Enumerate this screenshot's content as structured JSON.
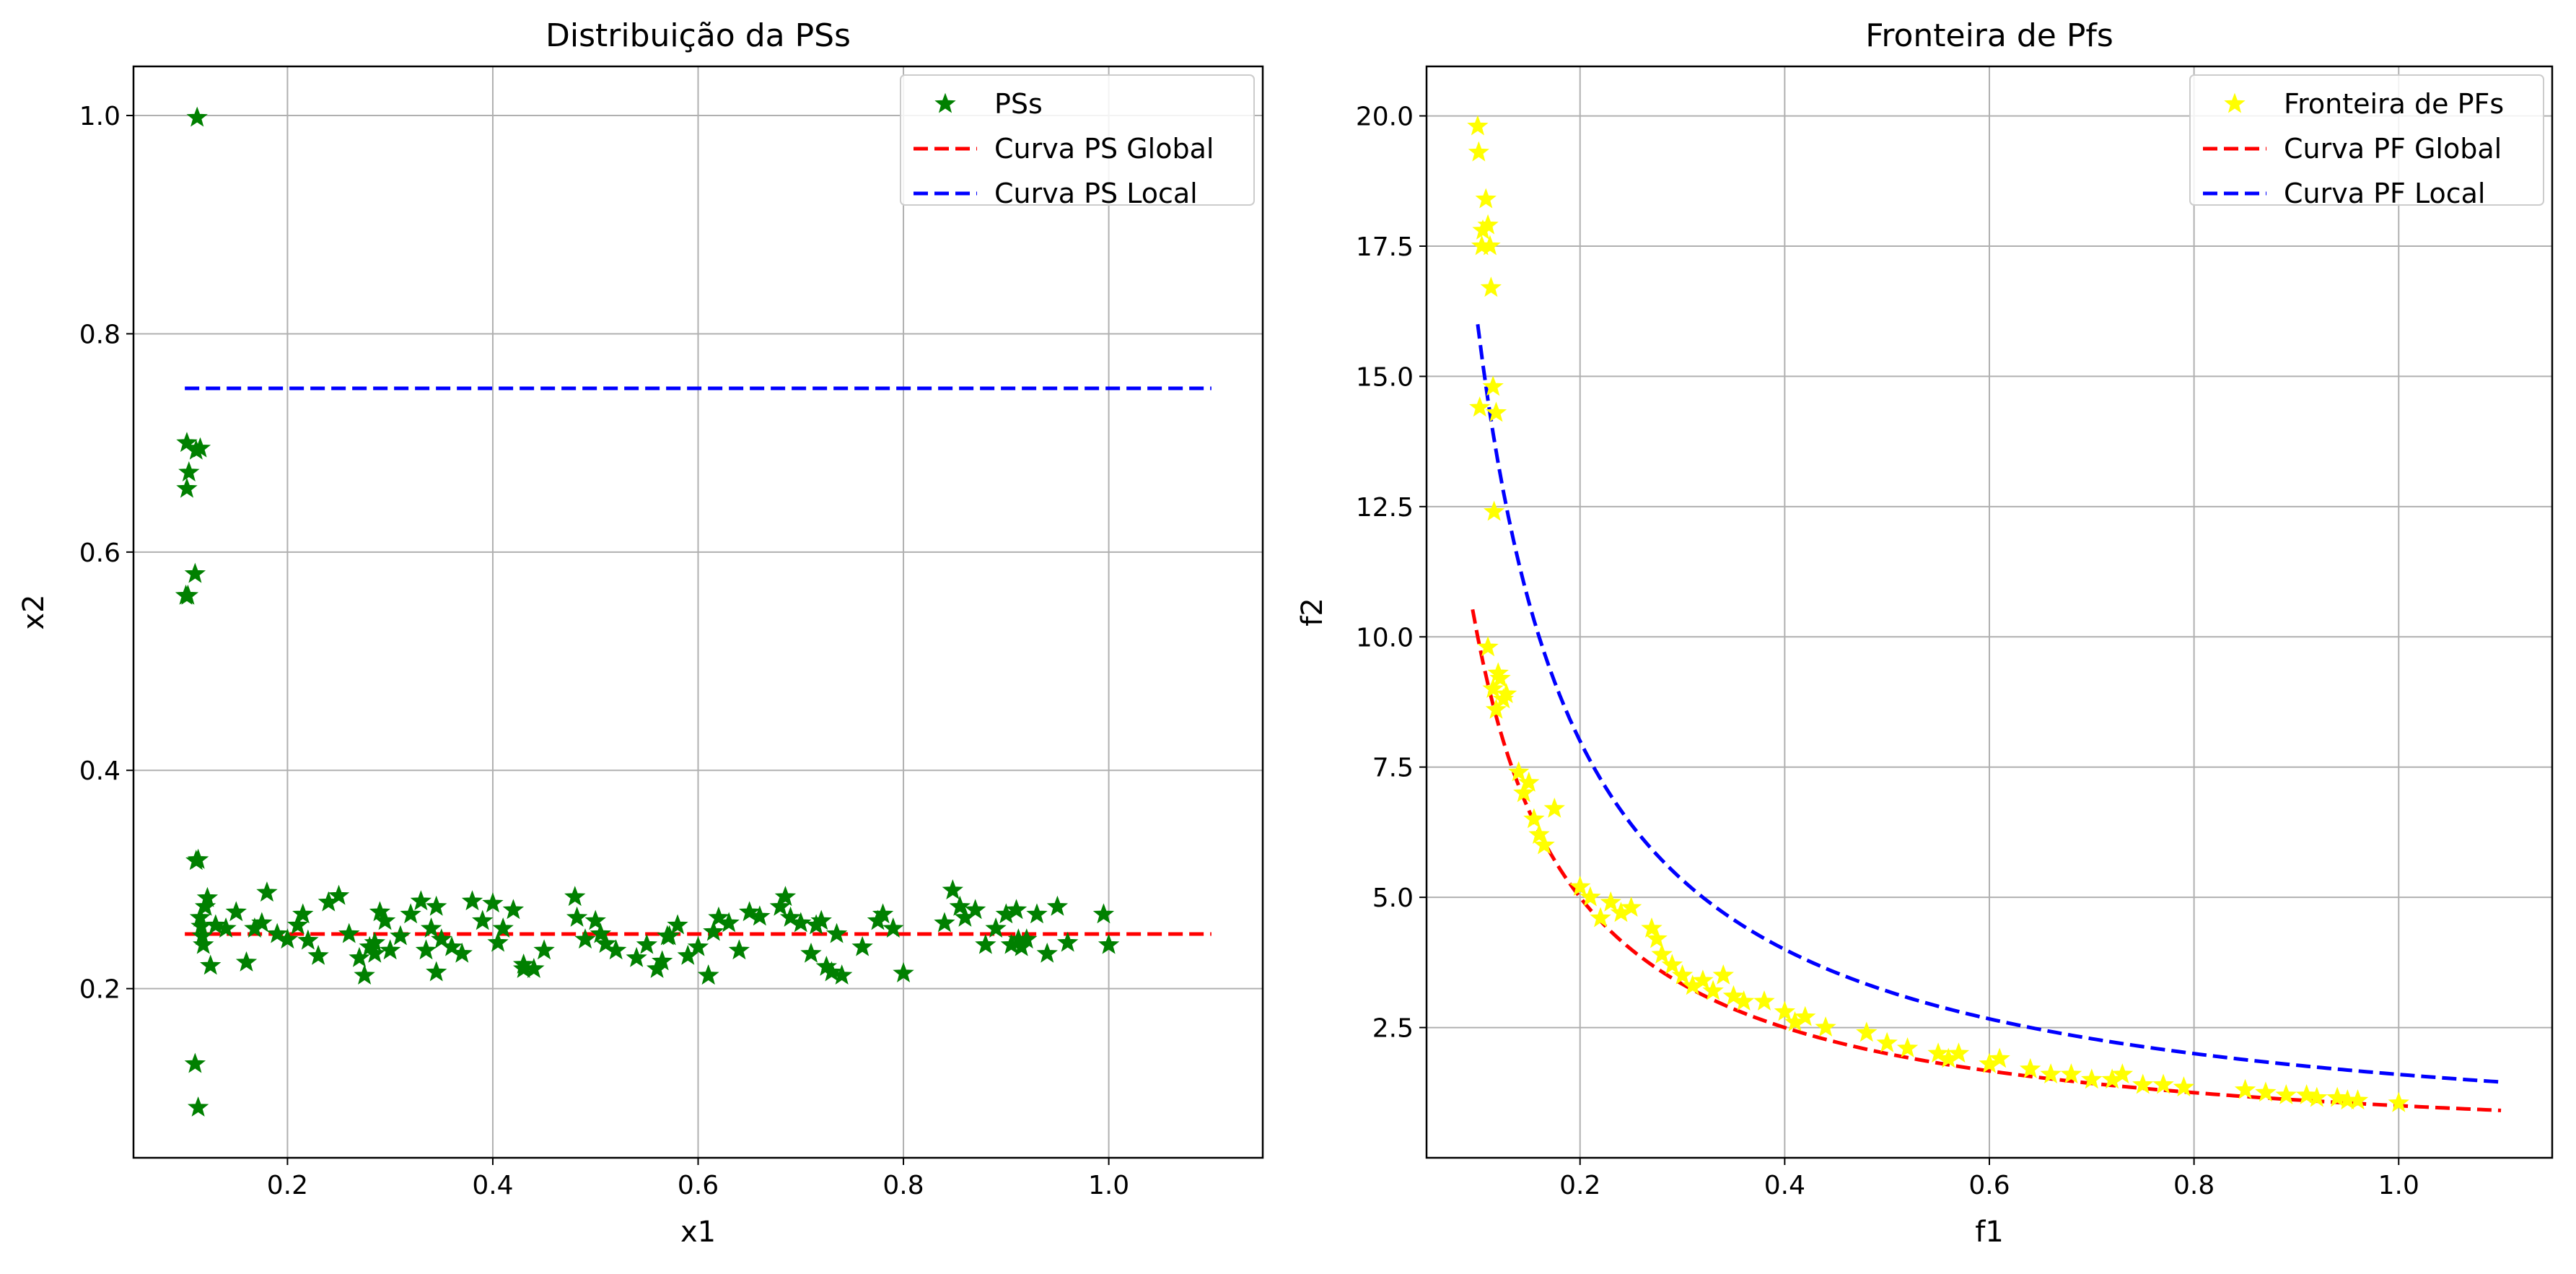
{
  "chart_data": [
    {
      "type": "scatter",
      "title": "Distribuição da PSs",
      "xlabel": "x1",
      "ylabel": "x2",
      "xlim": [
        0.05,
        1.15
      ],
      "ylim": [
        0.045,
        1.045
      ],
      "xticks": [
        0.2,
        0.4,
        0.6,
        0.8,
        1.0
      ],
      "xtick_labels": [
        "0.2",
        "0.4",
        "0.6",
        "0.8",
        "1.0"
      ],
      "yticks": [
        0.2,
        0.4,
        0.6,
        0.8,
        1.0
      ],
      "ytick_labels": [
        "0.2",
        "0.4",
        "0.6",
        "0.8",
        "1.0"
      ],
      "grid": true,
      "legend_position": "top-right",
      "series": [
        {
          "name": "PSs",
          "kind": "scatter",
          "marker": "star",
          "color": "#008000",
          "x": [
            0.112,
            0.102,
            0.104,
            0.111,
            0.115,
            0.102,
            0.101,
            0.11,
            0.103,
            0.113,
            0.111,
            0.11,
            0.113,
            0.116,
            0.118,
            0.12,
            0.122,
            0.125,
            0.115,
            0.117,
            0.13,
            0.14,
            0.15,
            0.16,
            0.168,
            0.175,
            0.18,
            0.19,
            0.2,
            0.21,
            0.215,
            0.22,
            0.23,
            0.24,
            0.25,
            0.26,
            0.27,
            0.275,
            0.28,
            0.285,
            0.29,
            0.295,
            0.3,
            0.31,
            0.32,
            0.33,
            0.335,
            0.34,
            0.345,
            0.35,
            0.36,
            0.37,
            0.38,
            0.39,
            0.4,
            0.405,
            0.41,
            0.42,
            0.43,
            0.44,
            0.45,
            0.48,
            0.482,
            0.49,
            0.5,
            0.505,
            0.51,
            0.52,
            0.54,
            0.55,
            0.56,
            0.565,
            0.57,
            0.58,
            0.59,
            0.6,
            0.61,
            0.615,
            0.62,
            0.63,
            0.64,
            0.65,
            0.66,
            0.68,
            0.685,
            0.69,
            0.7,
            0.71,
            0.715,
            0.72,
            0.73,
            0.735,
            0.74,
            0.76,
            0.775,
            0.78,
            0.79,
            0.8,
            0.84,
            0.848,
            0.855,
            0.86,
            0.87,
            0.88,
            0.89,
            0.9,
            0.905,
            0.91,
            0.915,
            0.92,
            0.93,
            0.94,
            0.95,
            0.96,
            0.995,
            1.0,
            0.285,
            0.345,
            0.43,
            0.572,
            0.61,
            0.725,
            0.912
          ],
          "y": [
            0.998,
            0.7,
            0.673,
            0.693,
            0.695,
            0.658,
            0.56,
            0.58,
            0.56,
            0.318,
            0.317,
            0.131,
            0.091,
            0.257,
            0.24,
            0.275,
            0.283,
            0.221,
            0.265,
            0.248,
            0.258,
            0.255,
            0.27,
            0.224,
            0.255,
            0.26,
            0.288,
            0.25,
            0.245,
            0.258,
            0.268,
            0.244,
            0.23,
            0.279,
            0.285,
            0.25,
            0.228,
            0.212,
            0.238,
            0.242,
            0.27,
            0.262,
            0.235,
            0.248,
            0.268,
            0.28,
            0.235,
            0.255,
            0.215,
            0.245,
            0.238,
            0.232,
            0.28,
            0.262,
            0.278,
            0.242,
            0.255,
            0.272,
            0.222,
            0.218,
            0.235,
            0.284,
            0.265,
            0.245,
            0.262,
            0.25,
            0.241,
            0.235,
            0.228,
            0.24,
            0.218,
            0.225,
            0.248,
            0.258,
            0.23,
            0.238,
            0.212,
            0.252,
            0.265,
            0.26,
            0.235,
            0.27,
            0.266,
            0.275,
            0.284,
            0.265,
            0.26,
            0.232,
            0.258,
            0.262,
            0.215,
            0.25,
            0.212,
            0.238,
            0.262,
            0.268,
            0.255,
            0.214,
            0.26,
            0.29,
            0.275,
            0.265,
            0.272,
            0.24,
            0.255,
            0.268,
            0.24,
            0.272,
            0.238,
            0.245,
            0.268,
            0.232,
            0.275,
            0.242,
            0.268,
            0.24,
            0.232,
            0.275,
            0.218,
            0.248,
            0.212,
            0.22,
            0.245
          ]
        },
        {
          "name": "Curva PS Global",
          "kind": "line",
          "style": "dashed",
          "color": "#ff0000",
          "x": [
            0.1,
            1.1
          ],
          "y": [
            0.25,
            0.25
          ]
        },
        {
          "name": "Curva PS Local",
          "kind": "line",
          "style": "dashed",
          "color": "#0000ff",
          "x": [
            0.1,
            1.1
          ],
          "y": [
            0.75,
            0.75
          ]
        }
      ]
    },
    {
      "type": "scatter",
      "title": "Fronteira de Pfs",
      "xlabel": "f1",
      "ylabel": "f2",
      "xlim": [
        0.05,
        1.15
      ],
      "ylim": [
        0.0,
        20.95
      ],
      "xticks": [
        0.2,
        0.4,
        0.6,
        0.8,
        1.0
      ],
      "xtick_labels": [
        "0.2",
        "0.4",
        "0.6",
        "0.8",
        "1.0"
      ],
      "yticks": [
        2.5,
        5.0,
        7.5,
        10.0,
        12.5,
        15.0,
        17.5,
        20.0
      ],
      "ytick_labels": [
        "2.5",
        "5.0",
        "7.5",
        "10.0",
        "12.5",
        "15.0",
        "17.5",
        "20.0"
      ],
      "grid": true,
      "legend_position": "top-right",
      "series": [
        {
          "name": "Fronteira de PFs",
          "kind": "scatter",
          "marker": "star",
          "color": "#ffff00",
          "x": [
            0.1,
            0.101,
            0.104,
            0.105,
            0.108,
            0.11,
            0.112,
            0.113,
            0.102,
            0.115,
            0.118,
            0.116,
            0.11,
            0.115,
            0.12,
            0.125,
            0.118,
            0.122,
            0.128,
            0.14,
            0.145,
            0.15,
            0.155,
            0.16,
            0.165,
            0.175,
            0.2,
            0.21,
            0.22,
            0.23,
            0.24,
            0.25,
            0.27,
            0.275,
            0.28,
            0.29,
            0.3,
            0.31,
            0.32,
            0.33,
            0.34,
            0.35,
            0.36,
            0.38,
            0.4,
            0.41,
            0.42,
            0.44,
            0.48,
            0.5,
            0.52,
            0.55,
            0.56,
            0.57,
            0.6,
            0.61,
            0.64,
            0.66,
            0.68,
            0.7,
            0.72,
            0.73,
            0.75,
            0.77,
            0.79,
            0.85,
            0.87,
            0.89,
            0.91,
            0.92,
            0.94,
            0.95,
            0.96,
            1.0
          ],
          "y": [
            19.8,
            19.3,
            17.5,
            17.8,
            18.4,
            17.9,
            17.5,
            16.7,
            14.4,
            14.8,
            14.3,
            12.4,
            9.8,
            9.0,
            9.3,
            8.8,
            8.6,
            9.2,
            8.9,
            7.4,
            7.0,
            7.2,
            6.5,
            6.2,
            6.0,
            6.7,
            5.2,
            5.0,
            4.6,
            4.9,
            4.7,
            4.8,
            4.4,
            4.2,
            3.9,
            3.7,
            3.5,
            3.3,
            3.4,
            3.2,
            3.5,
            3.1,
            3.0,
            3.0,
            2.8,
            2.6,
            2.7,
            2.5,
            2.4,
            2.2,
            2.1,
            2.0,
            1.9,
            2.0,
            1.8,
            1.9,
            1.7,
            1.6,
            1.6,
            1.5,
            1.5,
            1.6,
            1.4,
            1.4,
            1.35,
            1.3,
            1.25,
            1.2,
            1.2,
            1.15,
            1.15,
            1.1,
            1.1,
            1.05
          ]
        },
        {
          "name": "Curva PF Global",
          "kind": "function",
          "formula": "1/x",
          "style": "dashed",
          "color": "#ff0000",
          "x_range": [
            0.095,
            1.1
          ]
        },
        {
          "name": "Curva PF Local",
          "kind": "function",
          "formula": "1.6/x",
          "style": "dashed",
          "color": "#0000ff",
          "x_range": [
            0.1,
            1.1
          ]
        }
      ]
    }
  ]
}
